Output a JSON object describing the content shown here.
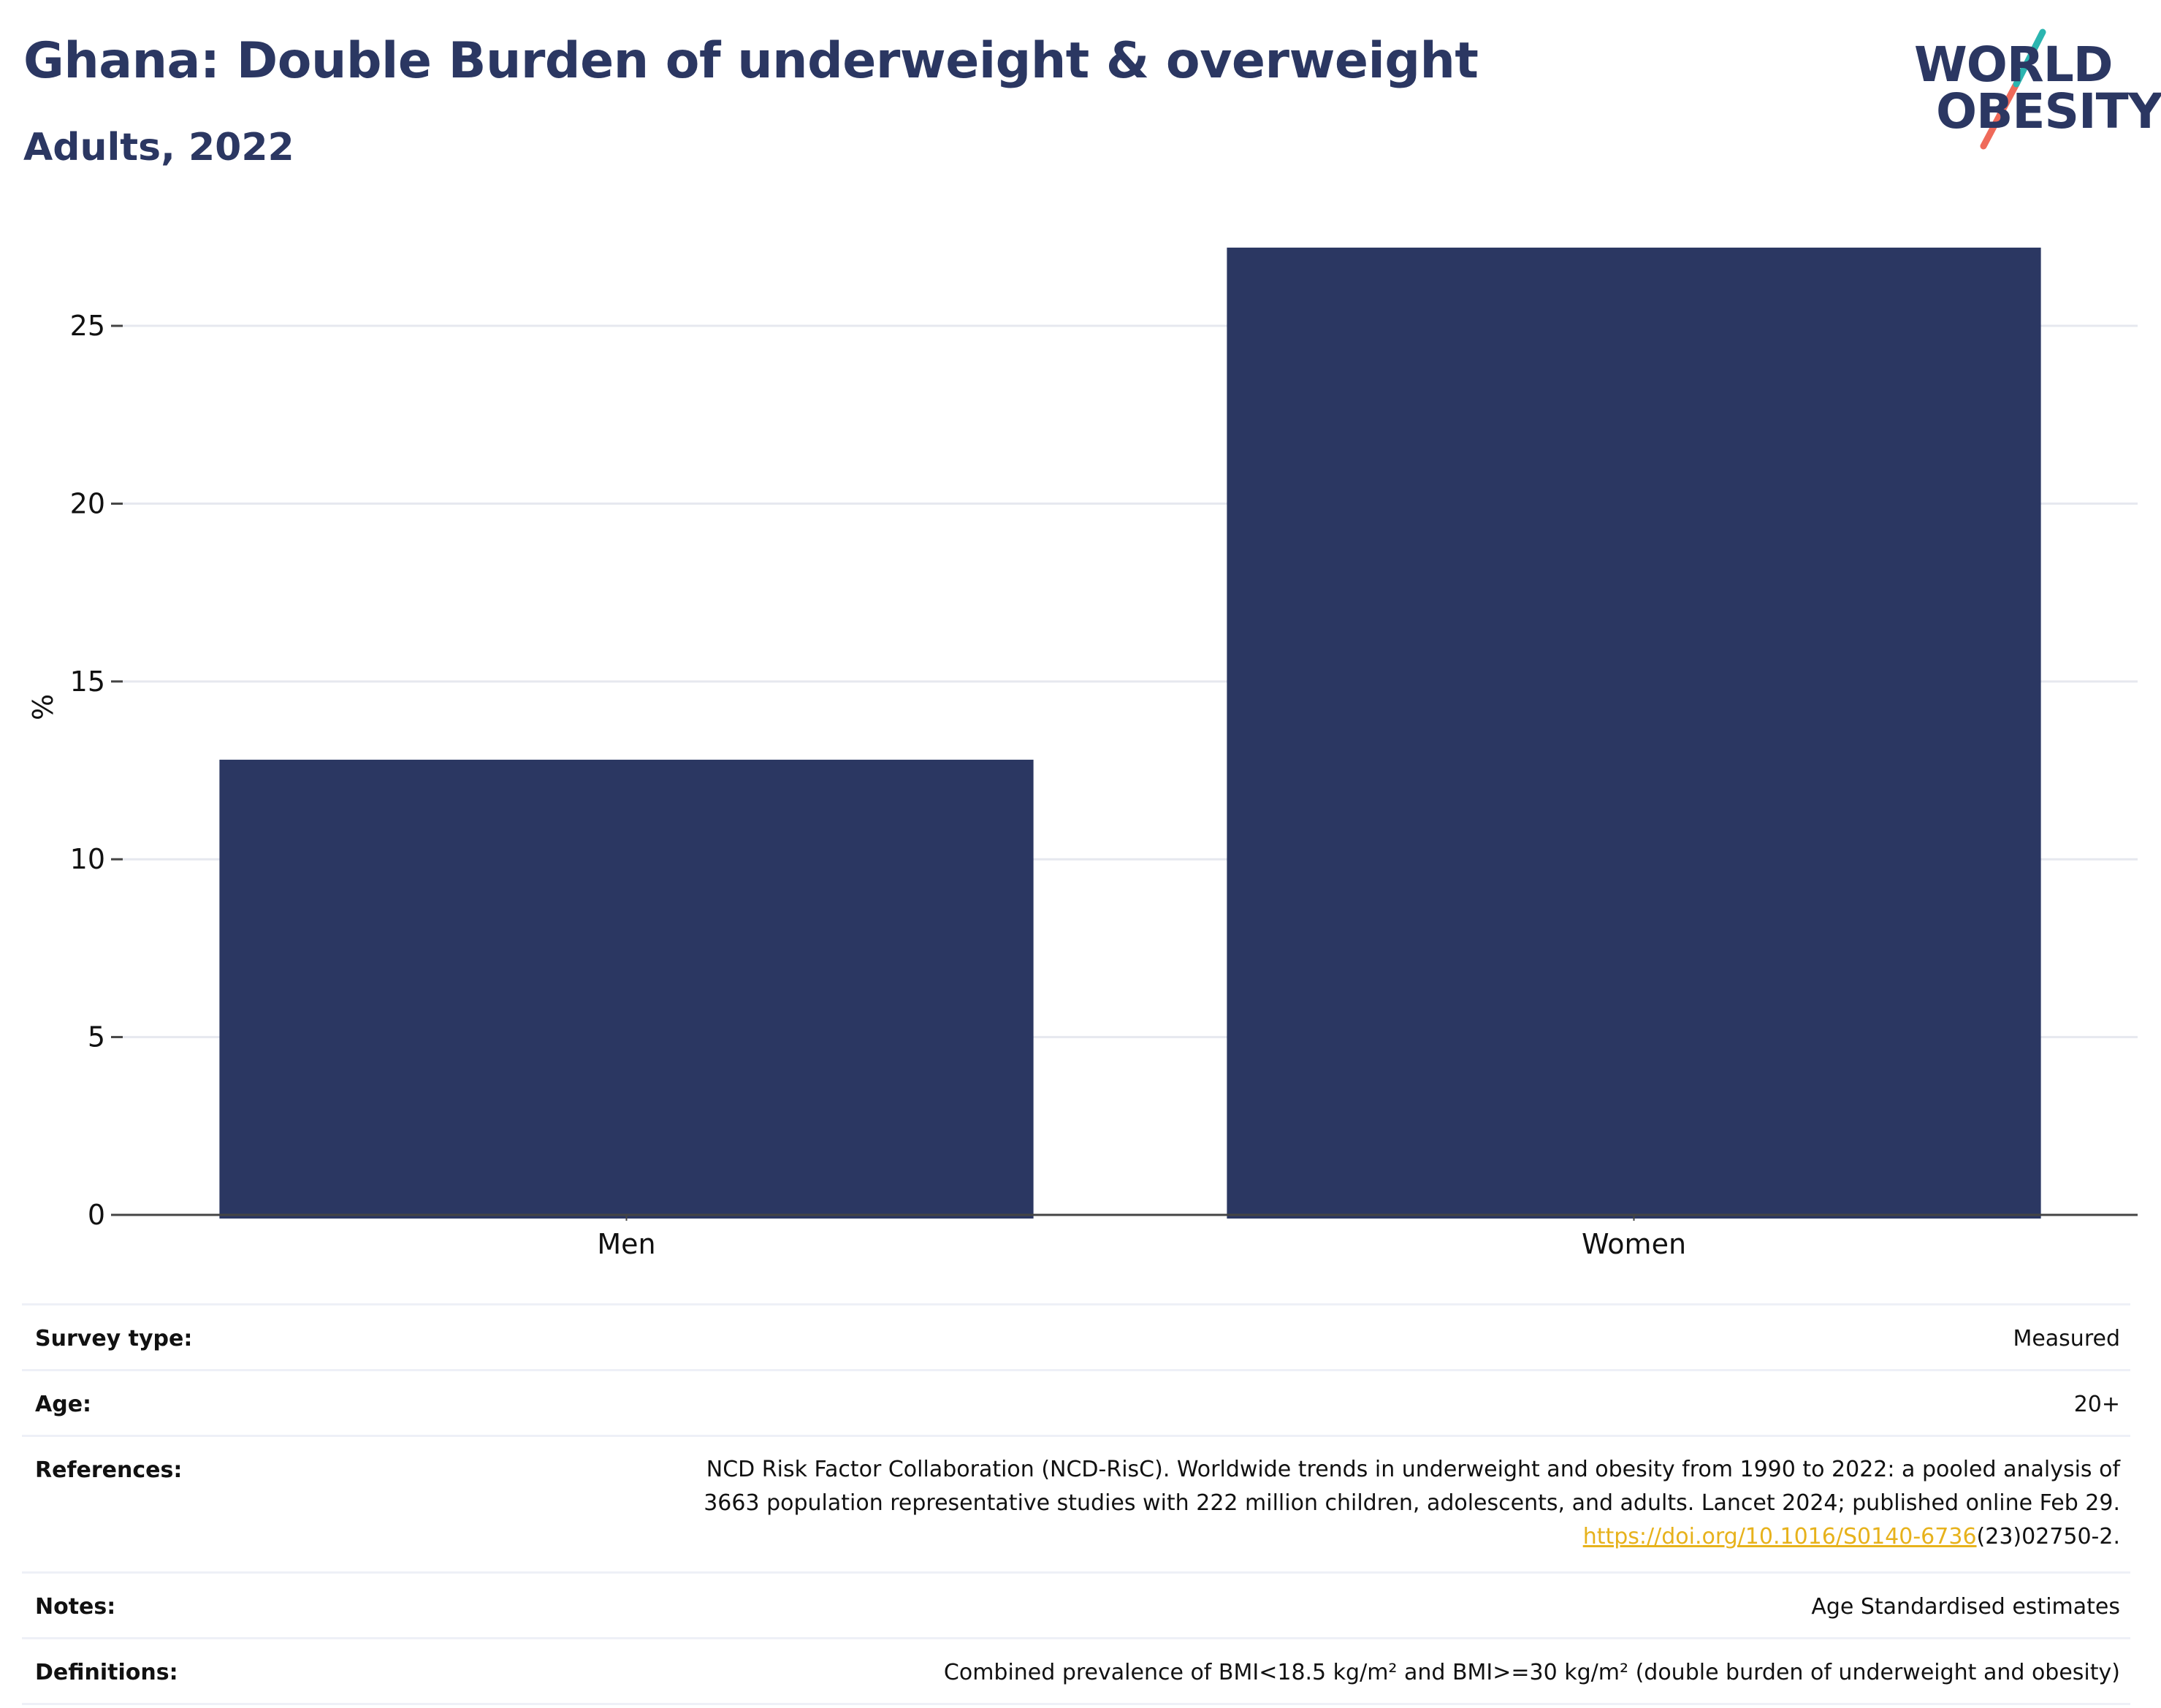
{
  "header": {
    "title": "Ghana: Double Burden of underweight & overweight",
    "subtitle": "Adults, 2022"
  },
  "logo": {
    "line1": "WORLD",
    "line2": "OBESITY",
    "colors": {
      "text": "#2b3762",
      "teal": "#2bb5b0",
      "coral": "#ef6a5a"
    }
  },
  "chart_data": {
    "type": "bar",
    "categories": [
      "Men",
      "Women"
    ],
    "values": [
      12.8,
      27.2
    ],
    "title": "",
    "xlabel": "",
    "ylabel": "%",
    "ylim": [
      0,
      28
    ],
    "yticks": [
      0,
      5,
      10,
      15,
      20,
      25
    ],
    "grid": true,
    "bar_color": "#2b3762"
  },
  "info": {
    "survey": {
      "label": "Survey type:",
      "value": "Measured"
    },
    "age": {
      "label": "Age:",
      "value": "20+"
    },
    "references": {
      "label": "References:",
      "line1": "NCD Risk Factor Collaboration (NCD-RisC). Worldwide trends in underweight and obesity from 1990 to 2022: a pooled analysis of",
      "line2": "3663 population representative studies with 222 million children, adolescents, and adults. Lancet 2024; published online Feb 29.",
      "link": "https://doi.org/10.1016/S0140-6736",
      "link_tail": "(23)02750-2."
    },
    "notes": {
      "label": "Notes:",
      "value": "Age Standardised estimates"
    },
    "definitions": {
      "label": "Definitions:",
      "value": "Combined prevalence of BMI<18.5 kg/m² and BMI>=30 kg/m² (double burden of underweight and obesity)"
    }
  }
}
